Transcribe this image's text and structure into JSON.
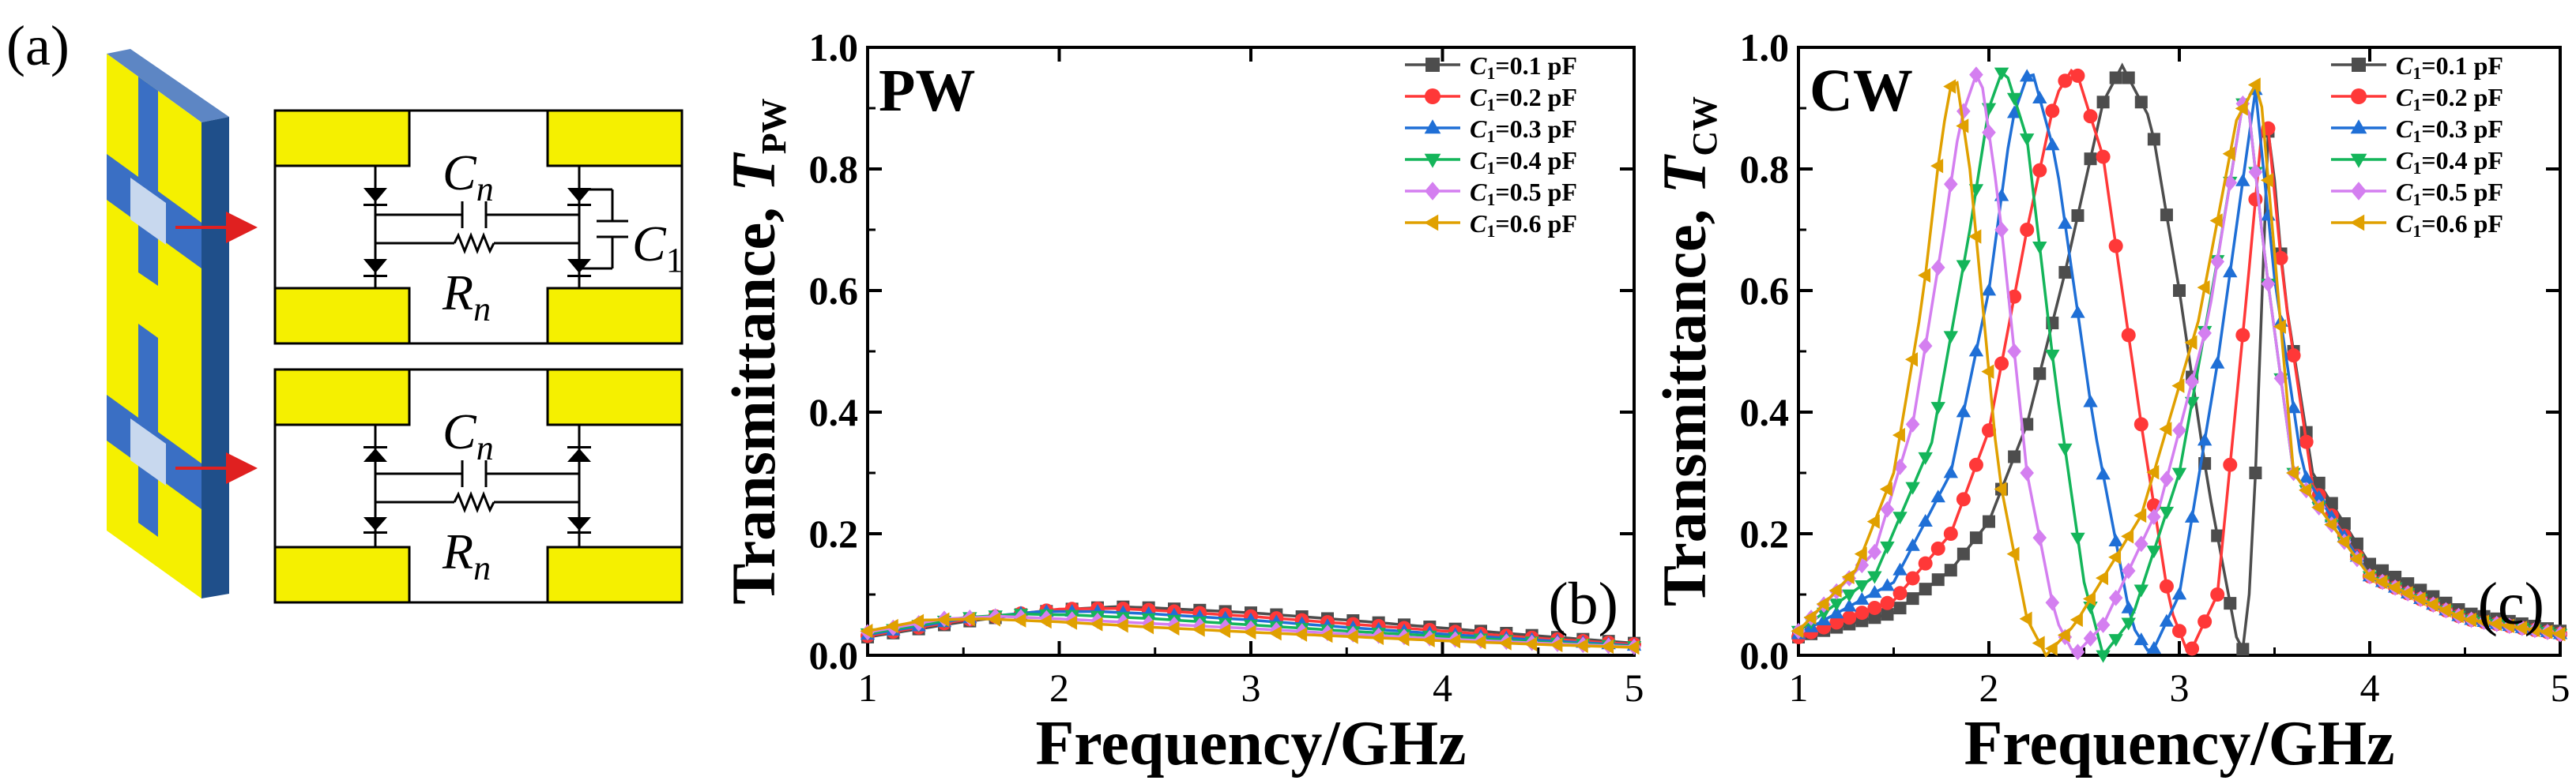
{
  "panel_a": {
    "label": "(a)",
    "circuit_top": {
      "cap_label": "C",
      "cap_sub": "n",
      "res_label": "R",
      "res_sub": "n",
      "c1_label": "C",
      "c1_sub": "1"
    },
    "circuit_bottom": {
      "cap_label": "C",
      "cap_sub": "n",
      "res_label": "R",
      "res_sub": "n"
    }
  },
  "colors": {
    "yellow": "#f5f000",
    "blue": "#3a6fc4",
    "dark_blue": "#1f4f8a",
    "light_blue": "#c8d8ee",
    "arrow_red": "#e02020",
    "series": [
      "#4d4d4d",
      "#ff3838",
      "#1f6fd6",
      "#14b55a",
      "#d47ff0",
      "#e0a000"
    ]
  },
  "chart_data": [
    {
      "type": "line",
      "panel_label": "(b)",
      "inset_label": "PW",
      "xlabel": "Frequency/GHz",
      "ylabel": {
        "prefix": "Transmittance, ",
        "var": "T",
        "sub": "PW"
      },
      "xlim": [
        1,
        5
      ],
      "ylim": [
        0,
        1.0
      ],
      "xticks": [
        "1",
        "2",
        "3",
        "4",
        "5"
      ],
      "yticks": [
        "0.0",
        "0.2",
        "0.4",
        "0.6",
        "0.8",
        "1.0"
      ],
      "legend_position": "top-right",
      "series": [
        {
          "name": "C1=0.1 pF",
          "label_var": "C",
          "label_sub": "1",
          "label_val": "=0.1 pF",
          "marker": "square",
          "x": [
            1,
            1.5,
            2,
            2.3,
            2.5,
            3,
            3.5,
            4,
            4.5,
            5
          ],
          "y": [
            0.03,
            0.055,
            0.075,
            0.08,
            0.078,
            0.07,
            0.058,
            0.045,
            0.032,
            0.02
          ]
        },
        {
          "name": "C1=0.2 pF",
          "label_var": "C",
          "label_sub": "1",
          "label_val": "=0.2 pF",
          "marker": "circle",
          "x": [
            1,
            1.5,
            2,
            2.3,
            2.5,
            3,
            3.5,
            4,
            4.5,
            5
          ],
          "y": [
            0.032,
            0.058,
            0.076,
            0.077,
            0.074,
            0.064,
            0.052,
            0.04,
            0.028,
            0.018
          ]
        },
        {
          "name": "C1=0.3 pF",
          "label_var": "C",
          "label_sub": "1",
          "label_val": "=0.3 pF",
          "marker": "triangle-up",
          "x": [
            1,
            1.5,
            1.9,
            2.2,
            2.5,
            3,
            3.5,
            4,
            4.5,
            5
          ],
          "y": [
            0.034,
            0.06,
            0.072,
            0.072,
            0.068,
            0.058,
            0.046,
            0.035,
            0.025,
            0.016
          ]
        },
        {
          "name": "C1=0.4 pF",
          "label_var": "C",
          "label_sub": "1",
          "label_val": "=0.4 pF",
          "marker": "triangle-down",
          "x": [
            1,
            1.5,
            1.8,
            2.1,
            2.5,
            3,
            3.5,
            4,
            4.5,
            5
          ],
          "y": [
            0.036,
            0.062,
            0.068,
            0.066,
            0.06,
            0.05,
            0.04,
            0.031,
            0.022,
            0.015
          ]
        },
        {
          "name": "C1=0.5 pF",
          "label_var": "C",
          "label_sub": "1",
          "label_val": "=0.5 pF",
          "marker": "diamond",
          "x": [
            1,
            1.4,
            1.7,
            2,
            2.5,
            3,
            3.5,
            4,
            4.5,
            5
          ],
          "y": [
            0.038,
            0.06,
            0.064,
            0.06,
            0.052,
            0.044,
            0.035,
            0.027,
            0.02,
            0.014
          ]
        },
        {
          "name": "C1=0.6 pF",
          "label_var": "C",
          "label_sub": "1",
          "label_val": "=0.6 pF",
          "marker": "triangle-left",
          "x": [
            1,
            1.3,
            1.6,
            2,
            2.5,
            3,
            3.5,
            4,
            4.5,
            5
          ],
          "y": [
            0.04,
            0.058,
            0.06,
            0.055,
            0.046,
            0.038,
            0.031,
            0.024,
            0.018,
            0.013
          ]
        }
      ]
    },
    {
      "type": "line",
      "panel_label": "(c)",
      "inset_label": "CW",
      "xlabel": "Frequency/GHz",
      "ylabel": {
        "prefix": "Transmittance, ",
        "var": "T",
        "sub": "CW"
      },
      "xlim": [
        1,
        5
      ],
      "ylim": [
        0,
        1.0
      ],
      "xticks": [
        "1",
        "2",
        "3",
        "4",
        "5"
      ],
      "yticks": [
        "0.0",
        "0.2",
        "0.4",
        "0.6",
        "0.8",
        "1.0"
      ],
      "legend_position": "top-right",
      "series": [
        {
          "name": "C1=0.1 pF",
          "label_var": "C",
          "label_sub": "1",
          "label_val": "=0.1 pF",
          "marker": "square",
          "x": [
            1,
            1.5,
            1.8,
            2,
            2.2,
            2.4,
            2.6,
            2.7,
            2.85,
            3,
            3.15,
            3.3,
            3.35,
            3.4,
            3.47,
            3.55,
            3.7,
            4,
            4.5,
            5
          ],
          "y": [
            0.03,
            0.07,
            0.14,
            0.22,
            0.38,
            0.63,
            0.91,
            0.97,
            0.88,
            0.6,
            0.28,
            0.03,
            0.0,
            0.3,
            0.89,
            0.6,
            0.3,
            0.15,
            0.07,
            0.04
          ]
        },
        {
          "name": "C1=0.2 pF",
          "label_var": "C",
          "label_sub": "1",
          "label_val": "=0.2 pF",
          "marker": "circle",
          "x": [
            1,
            1.5,
            1.8,
            2,
            2.2,
            2.35,
            2.45,
            2.6,
            2.8,
            2.95,
            3.05,
            3.2,
            3.35,
            3.45,
            3.55,
            3.7,
            4,
            4.5,
            5
          ],
          "y": [
            0.03,
            0.09,
            0.2,
            0.37,
            0.7,
            0.92,
            0.97,
            0.82,
            0.38,
            0.08,
            0.0,
            0.1,
            0.58,
            0.92,
            0.6,
            0.28,
            0.13,
            0.06,
            0.035
          ]
        },
        {
          "name": "C1=0.3 pF",
          "label_var": "C",
          "label_sub": "1",
          "label_val": "=0.3 pF",
          "marker": "triangle-up",
          "x": [
            1,
            1.5,
            1.8,
            2,
            2.12,
            2.22,
            2.35,
            2.55,
            2.75,
            2.85,
            3.0,
            3.2,
            3.4,
            3.5,
            3.65,
            4,
            4.5,
            5
          ],
          "y": [
            0.035,
            0.12,
            0.3,
            0.6,
            0.88,
            0.97,
            0.82,
            0.38,
            0.05,
            0.0,
            0.1,
            0.48,
            0.93,
            0.62,
            0.3,
            0.13,
            0.06,
            0.035
          ]
        },
        {
          "name": "C1=0.4 pF",
          "label_var": "C",
          "label_sub": "1",
          "label_val": "=0.4 pF",
          "marker": "triangle-down",
          "x": [
            1,
            1.4,
            1.7,
            1.9,
            2.0,
            2.08,
            2.2,
            2.35,
            2.5,
            2.6,
            2.75,
            3.0,
            3.2,
            3.35,
            3.45,
            3.6,
            4,
            4.5,
            5
          ],
          "y": [
            0.04,
            0.13,
            0.35,
            0.7,
            0.9,
            0.97,
            0.85,
            0.45,
            0.12,
            0.0,
            0.06,
            0.3,
            0.65,
            0.94,
            0.65,
            0.3,
            0.13,
            0.06,
            0.035
          ]
        },
        {
          "name": "C1=0.5 pF",
          "label_var": "C",
          "label_sub": "1",
          "label_val": "=0.5 pF",
          "marker": "diamond",
          "x": [
            1,
            1.4,
            1.6,
            1.75,
            1.85,
            1.95,
            2.05,
            2.2,
            2.35,
            2.45,
            2.6,
            2.9,
            3.15,
            3.35,
            3.45,
            3.6,
            4,
            4.5,
            5
          ],
          "y": [
            0.04,
            0.17,
            0.38,
            0.67,
            0.88,
            0.97,
            0.75,
            0.3,
            0.06,
            0.0,
            0.05,
            0.25,
            0.55,
            0.94,
            0.65,
            0.3,
            0.13,
            0.06,
            0.035
          ]
        },
        {
          "name": "C1=0.6 pF",
          "label_var": "C",
          "label_sub": "1",
          "label_val": "=0.6 pF",
          "marker": "triangle-left",
          "x": [
            1,
            1.3,
            1.5,
            1.65,
            1.75,
            1.82,
            1.9,
            2.05,
            2.2,
            2.3,
            2.45,
            2.8,
            3.1,
            3.3,
            3.42,
            3.6,
            4,
            4.5,
            5
          ],
          "y": [
            0.04,
            0.14,
            0.3,
            0.58,
            0.85,
            0.97,
            0.8,
            0.3,
            0.06,
            0.0,
            0.05,
            0.23,
            0.55,
            0.88,
            0.95,
            0.3,
            0.13,
            0.06,
            0.035
          ]
        }
      ]
    }
  ]
}
